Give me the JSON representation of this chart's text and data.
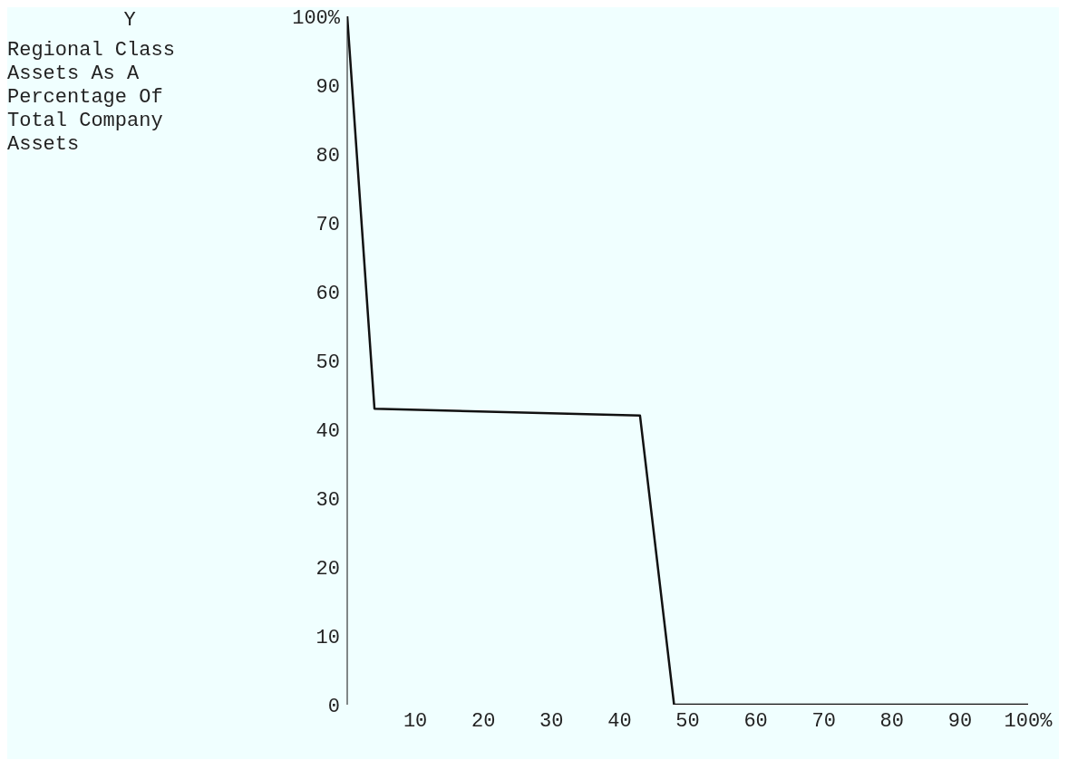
{
  "chart_data": {
    "type": "line",
    "annotations": [
      "Y",
      "Regional Class Assets As A Percentage Of Total Company Assets"
    ],
    "x": [
      0,
      4,
      43,
      48,
      100
    ],
    "series": [
      {
        "color": "#111111",
        "values": [
          100,
          43,
          42,
          0,
          0
        ]
      }
    ],
    "xlim": [
      0,
      100
    ],
    "ylim": [
      0,
      100
    ],
    "xticks": [
      10,
      20,
      30,
      40,
      50,
      60,
      70,
      80,
      90,
      {
        "value": 100,
        "label": "100%"
      }
    ],
    "yticks": [
      0,
      10,
      20,
      30,
      40,
      50,
      60,
      70,
      80,
      90,
      {
        "value": 100,
        "label": "100%"
      }
    ],
    "grid": false,
    "marker": "none",
    "line_style": "solid"
  }
}
